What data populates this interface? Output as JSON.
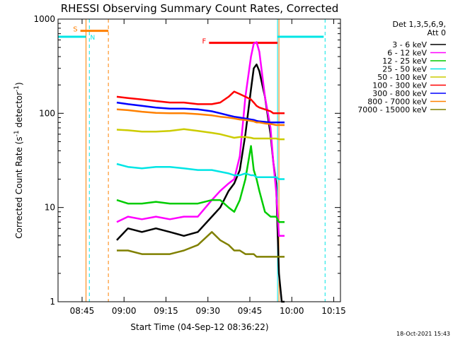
{
  "chart_data": {
    "type": "line",
    "title": "RHESSI Observing Summary Count Rates, Corrected",
    "xlabel": "Start Time (04-Sep-12 08:36:22)",
    "ylabel_main": "Corrected Count Rate (s",
    "ylabel_sup1": "-1",
    "ylabel_mid": " detector",
    "ylabel_sup2": "-1",
    "ylabel_end": ")",
    "timestamp": "18-Oct-2021 15:43",
    "x_axis": {
      "unit": "minutes since 08:36:22",
      "range": [
        0,
        101
      ],
      "ticks": [
        {
          "label": "08:45",
          "value": 8.6
        },
        {
          "label": "09:00",
          "value": 23.6
        },
        {
          "label": "09:15",
          "value": 38.6
        },
        {
          "label": "09:30",
          "value": 53.6
        },
        {
          "label": "09:45",
          "value": 68.6
        },
        {
          "label": "10:00",
          "value": 83.6
        },
        {
          "label": "10:15",
          "value": 98.6
        }
      ]
    },
    "y_axis": {
      "scale": "log",
      "range": [
        1,
        1000
      ],
      "ticks": [
        {
          "label": "1",
          "value": 1
        },
        {
          "label": "10",
          "value": 10
        },
        {
          "label": "100",
          "value": 100
        },
        {
          "label": "1000",
          "value": 1000
        }
      ]
    },
    "legend": {
      "placement": "right",
      "header1": "Det 1,3,5,6,9,",
      "header2": "Att 0",
      "entries": [
        {
          "label": "3 - 6 keV",
          "color": "#000000"
        },
        {
          "label": "6 - 12 keV",
          "color": "#ff00ff"
        },
        {
          "label": "12 - 25 keV",
          "color": "#00cc00"
        },
        {
          "label": "25 - 50 keV",
          "color": "#00e5e5"
        },
        {
          "label": "50 - 100 keV",
          "color": "#cccc00"
        },
        {
          "label": "100 - 300 keV",
          "color": "#ff0000"
        },
        {
          "label": "300 - 800 keV",
          "color": "#0000ff"
        },
        {
          "label": "800 - 7000 keV",
          "color": "#ff8000"
        },
        {
          "label": "7000 - 15000 keV",
          "color": "#808000"
        }
      ]
    },
    "flags": [
      {
        "label": "S",
        "x_start": 8.0,
        "x_end": 18.0,
        "y": 750,
        "color": "#ff8000"
      },
      {
        "label": "F",
        "x_start": 54.0,
        "x_end": 78.5,
        "y": 560,
        "color": "#ff0000"
      }
    ],
    "night_intervals": [
      {
        "label": "N",
        "x_start": 0,
        "x_end": 10,
        "y": 650,
        "color": "#00e5e5"
      },
      {
        "label": "",
        "x_start": 78.5,
        "x_end": 95,
        "y": 650,
        "color": "#00e5e5"
      }
    ],
    "vertical_lines": [
      {
        "x": 10.0,
        "color": "#ff8000",
        "style": "solid"
      },
      {
        "x": 18.0,
        "color": "#ff8000",
        "style": "dashed"
      },
      {
        "x": 11.2,
        "color": "#00e5e5",
        "style": "dashed"
      },
      {
        "x": 78.5,
        "color": "#00e5e5",
        "style": "solid"
      },
      {
        "x": 79.0,
        "color": "#ff8000",
        "style": "solid"
      },
      {
        "x": 95.5,
        "color": "#00e5e5",
        "style": "dashed"
      }
    ],
    "x": [
      21,
      25,
      30,
      35,
      40,
      45,
      50,
      55,
      58,
      61,
      63,
      65,
      67,
      69,
      70,
      71,
      72,
      74,
      76,
      77,
      78,
      79,
      80,
      81
    ],
    "series": [
      {
        "name": "3 - 6 keV",
        "color": "#000000",
        "values": [
          4.5,
          6,
          5.5,
          6,
          5.5,
          5,
          5.5,
          8,
          10,
          15,
          18,
          25,
          60,
          180,
          300,
          330,
          280,
          150,
          60,
          30,
          18,
          2,
          1,
          1
        ]
      },
      {
        "name": "6 - 12 keV",
        "color": "#ff00ff",
        "values": [
          7,
          8,
          7.5,
          8,
          7.5,
          8,
          8,
          12,
          15,
          18,
          20,
          35,
          150,
          400,
          550,
          570,
          450,
          150,
          70,
          30,
          15,
          5,
          5,
          5
        ]
      },
      {
        "name": "12 - 25 keV",
        "color": "#00cc00",
        "values": [
          12,
          11,
          11,
          11.5,
          11,
          11,
          11,
          12,
          12,
          10,
          9,
          12,
          20,
          45,
          25,
          20,
          15,
          9,
          8,
          8,
          8,
          7,
          7,
          7
        ]
      },
      {
        "name": "25 - 50 keV",
        "color": "#00e5e5",
        "values": [
          29,
          27,
          26,
          27,
          27,
          26,
          25,
          25,
          24,
          23,
          22,
          22,
          23,
          22,
          22,
          21,
          21,
          21,
          21,
          21,
          21,
          20,
          20,
          20
        ]
      },
      {
        "name": "50 - 100 keV",
        "color": "#cccc00",
        "values": [
          67,
          66,
          64,
          64,
          65,
          68,
          65,
          62,
          60,
          57,
          55,
          56,
          56,
          55,
          54,
          54,
          54,
          54,
          54,
          54,
          54,
          53,
          53,
          53
        ]
      },
      {
        "name": "100 - 300 keV",
        "color": "#ff0000",
        "values": [
          150,
          145,
          140,
          135,
          130,
          130,
          125,
          125,
          130,
          150,
          170,
          160,
          150,
          140,
          130,
          120,
          115,
          110,
          105,
          100,
          100,
          100,
          100,
          100
        ]
      },
      {
        "name": "300 - 800 keV",
        "color": "#0000ff",
        "values": [
          130,
          125,
          120,
          115,
          112,
          112,
          110,
          105,
          100,
          95,
          92,
          90,
          88,
          86,
          85,
          83,
          82,
          81,
          80,
          80,
          80,
          80,
          80,
          80
        ]
      },
      {
        "name": "800 - 7000 keV",
        "color": "#ff8000",
        "values": [
          110,
          108,
          104,
          101,
          100,
          100,
          98,
          95,
          92,
          90,
          88,
          86,
          85,
          83,
          82,
          80,
          80,
          78,
          77,
          76,
          75,
          75,
          75,
          75
        ]
      },
      {
        "name": "7000 - 15000 keV",
        "color": "#808000",
        "values": [
          3.5,
          3.5,
          3.2,
          3.2,
          3.2,
          3.5,
          4,
          5.5,
          4.5,
          4,
          3.5,
          3.5,
          3.2,
          3.2,
          3.2,
          3,
          3,
          3,
          3,
          3,
          3,
          3,
          3,
          3
        ]
      }
    ]
  }
}
